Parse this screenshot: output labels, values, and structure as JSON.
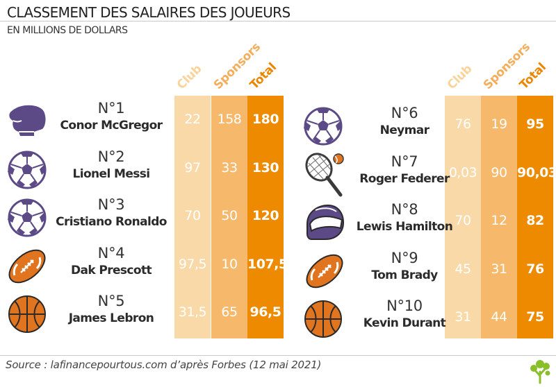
{
  "title": "CLASSEMENT DES SALAIRES DES JOUEURS",
  "subtitle": "EN MILLIONS DE DOLLARS",
  "column_labels": [
    "Club",
    "Sponsors",
    "Total"
  ],
  "colors": {
    "club_bg": "#fad9a8",
    "sponsors_bg": "#f6b86a",
    "total_bg": "#ee8a00",
    "club_head": "#f9d39a",
    "sponsors_head": "#f4ad5a",
    "total_head": "#ec8600",
    "icon_purple": "#5c4a87",
    "icon_orange": "#e0741f"
  },
  "source": "Source : lafinancepourtous.com d’après Forbes (12 mai 2021)",
  "players": [
    {
      "rank": "N°1",
      "name": "Conor McGregor",
      "icon": "boxing-glove-icon",
      "club": "22",
      "sponsors": "158",
      "total": "180"
    },
    {
      "rank": "N°2",
      "name": "Lionel Messi",
      "icon": "soccer-ball-icon",
      "club": "97",
      "sponsors": "33",
      "total": "130"
    },
    {
      "rank": "N°3",
      "name": "Cristiano Ronaldo",
      "icon": "soccer-ball-icon",
      "club": "70",
      "sponsors": "50",
      "total": "120"
    },
    {
      "rank": "N°4",
      "name": "Dak Prescott",
      "icon": "american-football-icon",
      "club": "97,5",
      "sponsors": "10",
      "total": "107,5"
    },
    {
      "rank": "N°5",
      "name": "James Lebron",
      "icon": "basketball-icon",
      "club": "31,5",
      "sponsors": "65",
      "total": "96,5"
    },
    {
      "rank": "N°6",
      "name": "Neymar",
      "icon": "soccer-ball-icon",
      "club": "76",
      "sponsors": "19",
      "total": "95"
    },
    {
      "rank": "N°7",
      "name": "Roger Federer",
      "icon": "tennis-racket-icon",
      "club": "0,03",
      "sponsors": "90",
      "total": "90,03"
    },
    {
      "rank": "N°8",
      "name": "Lewis Hamilton",
      "icon": "racing-helmet-icon",
      "club": "70",
      "sponsors": "12",
      "total": "82"
    },
    {
      "rank": "N°9",
      "name": "Tom Brady",
      "icon": "american-football-icon",
      "club": "45",
      "sponsors": "31",
      "total": "76"
    },
    {
      "rank": "N°10",
      "name": "Kevin Durant",
      "icon": "basketball-icon",
      "club": "31",
      "sponsors": "44",
      "total": "75"
    }
  ],
  "chart_data": {
    "type": "table",
    "title": "CLASSEMENT DES SALAIRES DES JOUEURS",
    "subtitle": "EN MILLIONS DE DOLLARS",
    "columns": [
      "Club",
      "Sponsors",
      "Total"
    ],
    "rows": [
      {
        "rank": 1,
        "name": "Conor McGregor",
        "club": 22,
        "sponsors": 158,
        "total": 180
      },
      {
        "rank": 2,
        "name": "Lionel Messi",
        "club": 97,
        "sponsors": 33,
        "total": 130
      },
      {
        "rank": 3,
        "name": "Cristiano Ronaldo",
        "club": 70,
        "sponsors": 50,
        "total": 120
      },
      {
        "rank": 4,
        "name": "Dak Prescott",
        "club": 97.5,
        "sponsors": 10,
        "total": 107.5
      },
      {
        "rank": 5,
        "name": "James Lebron",
        "club": 31.5,
        "sponsors": 65,
        "total": 96.5
      },
      {
        "rank": 6,
        "name": "Neymar",
        "club": 76,
        "sponsors": 19,
        "total": 95
      },
      {
        "rank": 7,
        "name": "Roger Federer",
        "club": 0.03,
        "sponsors": 90,
        "total": 90.03
      },
      {
        "rank": 8,
        "name": "Lewis Hamilton",
        "club": 70,
        "sponsors": 12,
        "total": 82
      },
      {
        "rank": 9,
        "name": "Tom Brady",
        "club": 45,
        "sponsors": 31,
        "total": 76
      },
      {
        "rank": 10,
        "name": "Kevin Durant",
        "club": 31,
        "sponsors": 44,
        "total": 75
      }
    ]
  }
}
